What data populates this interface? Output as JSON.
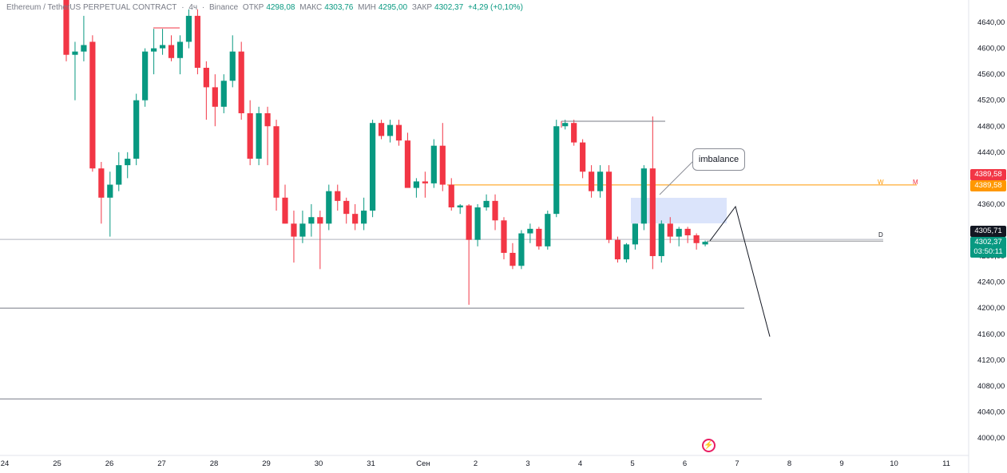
{
  "header": {
    "symbol": "Ethereum / TetherUS PERPETUAL CONTRACT",
    "sep1": "·",
    "interval": "4ч",
    "sep2": "·",
    "exchange": "Binance",
    "open_label": "ОТКР",
    "open_value": "4298,08",
    "high_label": "МАКС",
    "high_value": "4303,76",
    "low_label": "МИН",
    "low_value": "4295,00",
    "close_label": "ЗАКР",
    "close_value": "4302,37",
    "change": "+4,29 (+0,10%)"
  },
  "price_axis": {
    "labels": [
      "4640,00",
      "4600,00",
      "4560,00",
      "4520,00",
      "4480,00",
      "4440,00",
      "4400,00",
      "4360,00",
      "4320,00",
      "4280,00",
      "4240,00",
      "4200,00",
      "4160,00",
      "4120,00",
      "4080,00",
      "4040,00",
      "4000,00"
    ],
    "tags": {
      "red": "4389,58",
      "orange": "4389,58",
      "black": "4305,71",
      "green": "4302,37",
      "timer": "03:50:11"
    }
  },
  "time_axis": {
    "labels": [
      "24",
      "25",
      "26",
      "27",
      "28",
      "29",
      "30",
      "31",
      "Сен",
      "2",
      "3",
      "4",
      "5",
      "6",
      "7",
      "8",
      "9",
      "10",
      "11"
    ]
  },
  "annotations": {
    "imbalance_label": "imbalance",
    "level_w": "W",
    "level_m": "M",
    "level_d": "D"
  },
  "colors": {
    "up": "#089981",
    "down": "#f23645",
    "orange": "#ff9800",
    "level": "#787b86",
    "imbalance": "#dbe4fb"
  },
  "chart_data": {
    "type": "candlestick",
    "ylim": [
      4000,
      4640
    ],
    "candles": [
      {
        "o": 4680,
        "h": 4700,
        "l": 4580,
        "c": 4590
      },
      {
        "o": 4590,
        "h": 4610,
        "l": 4520,
        "c": 4595
      },
      {
        "o": 4595,
        "h": 4650,
        "l": 4580,
        "c": 4605
      },
      {
        "o": 4610,
        "h": 4620,
        "l": 4410,
        "c": 4415
      },
      {
        "o": 4415,
        "h": 4425,
        "l": 4330,
        "c": 4370
      },
      {
        "o": 4370,
        "h": 4410,
        "l": 4310,
        "c": 4390
      },
      {
        "o": 4390,
        "h": 4440,
        "l": 4380,
        "c": 4420
      },
      {
        "o": 4420,
        "h": 4440,
        "l": 4400,
        "c": 4430
      },
      {
        "o": 4430,
        "h": 4530,
        "l": 4420,
        "c": 4520
      },
      {
        "o": 4520,
        "h": 4600,
        "l": 4510,
        "c": 4595
      },
      {
        "o": 4595,
        "h": 4630,
        "l": 4560,
        "c": 4600
      },
      {
        "o": 4600,
        "h": 4630,
        "l": 4590,
        "c": 4605
      },
      {
        "o": 4605,
        "h": 4620,
        "l": 4580,
        "c": 4585
      },
      {
        "o": 4585,
        "h": 4620,
        "l": 4560,
        "c": 4610
      },
      {
        "o": 4610,
        "h": 4660,
        "l": 4600,
        "c": 4650
      },
      {
        "o": 4650,
        "h": 4660,
        "l": 4560,
        "c": 4570
      },
      {
        "o": 4570,
        "h": 4580,
        "l": 4490,
        "c": 4540
      },
      {
        "o": 4540,
        "h": 4560,
        "l": 4480,
        "c": 4510
      },
      {
        "o": 4510,
        "h": 4560,
        "l": 4500,
        "c": 4550
      },
      {
        "o": 4550,
        "h": 4620,
        "l": 4540,
        "c": 4595
      },
      {
        "o": 4595,
        "h": 4610,
        "l": 4490,
        "c": 4500
      },
      {
        "o": 4500,
        "h": 4520,
        "l": 4420,
        "c": 4430
      },
      {
        "o": 4430,
        "h": 4510,
        "l": 4420,
        "c": 4500
      },
      {
        "o": 4500,
        "h": 4510,
        "l": 4420,
        "c": 4480
      },
      {
        "o": 4480,
        "h": 4490,
        "l": 4350,
        "c": 4370
      },
      {
        "o": 4370,
        "h": 4390,
        "l": 4330,
        "c": 4330
      },
      {
        "o": 4330,
        "h": 4350,
        "l": 4270,
        "c": 4310
      },
      {
        "o": 4310,
        "h": 4350,
        "l": 4300,
        "c": 4330
      },
      {
        "o": 4330,
        "h": 4360,
        "l": 4310,
        "c": 4340
      },
      {
        "o": 4340,
        "h": 4350,
        "l": 4260,
        "c": 4330
      },
      {
        "o": 4330,
        "h": 4390,
        "l": 4320,
        "c": 4380
      },
      {
        "o": 4380,
        "h": 4390,
        "l": 4350,
        "c": 4365
      },
      {
        "o": 4365,
        "h": 4370,
        "l": 4330,
        "c": 4345
      },
      {
        "o": 4345,
        "h": 4360,
        "l": 4320,
        "c": 4330
      },
      {
        "o": 4330,
        "h": 4370,
        "l": 4320,
        "c": 4350
      },
      {
        "o": 4350,
        "h": 4490,
        "l": 4340,
        "c": 4485
      },
      {
        "o": 4485,
        "h": 4490,
        "l": 4460,
        "c": 4465
      },
      {
        "o": 4465,
        "h": 4490,
        "l": 4455,
        "c": 4482
      },
      {
        "o": 4482,
        "h": 4490,
        "l": 4450,
        "c": 4458
      },
      {
        "o": 4458,
        "h": 4470,
        "l": 4390,
        "c": 4385
      },
      {
        "o": 4385,
        "h": 4400,
        "l": 4370,
        "c": 4395
      },
      {
        "o": 4395,
        "h": 4410,
        "l": 4370,
        "c": 4392
      },
      {
        "o": 4392,
        "h": 4460,
        "l": 4385,
        "c": 4450
      },
      {
        "o": 4450,
        "h": 4485,
        "l": 4380,
        "c": 4390
      },
      {
        "o": 4390,
        "h": 4400,
        "l": 4350,
        "c": 4355
      },
      {
        "o": 4355,
        "h": 4360,
        "l": 4345,
        "c": 4358
      },
      {
        "o": 4358,
        "h": 4360,
        "l": 4205,
        "c": 4305
      },
      {
        "o": 4305,
        "h": 4360,
        "l": 4295,
        "c": 4355
      },
      {
        "o": 4355,
        "h": 4375,
        "l": 4350,
        "c": 4365
      },
      {
        "o": 4365,
        "h": 4375,
        "l": 4320,
        "c": 4335
      },
      {
        "o": 4335,
        "h": 4340,
        "l": 4275,
        "c": 4285
      },
      {
        "o": 4285,
        "h": 4300,
        "l": 4260,
        "c": 4265
      },
      {
        "o": 4265,
        "h": 4320,
        "l": 4260,
        "c": 4315
      },
      {
        "o": 4315,
        "h": 4330,
        "l": 4300,
        "c": 4322
      },
      {
        "o": 4322,
        "h": 4325,
        "l": 4290,
        "c": 4295
      },
      {
        "o": 4295,
        "h": 4350,
        "l": 4290,
        "c": 4345
      },
      {
        "o": 4345,
        "h": 4490,
        "l": 4340,
        "c": 4480
      },
      {
        "o": 4480,
        "h": 4490,
        "l": 4475,
        "c": 4485
      },
      {
        "o": 4485,
        "h": 4490,
        "l": 4450,
        "c": 4455
      },
      {
        "o": 4455,
        "h": 4460,
        "l": 4400,
        "c": 4410
      },
      {
        "o": 4410,
        "h": 4420,
        "l": 4370,
        "c": 4380
      },
      {
        "o": 4380,
        "h": 4420,
        "l": 4370,
        "c": 4410
      },
      {
        "o": 4410,
        "h": 4420,
        "l": 4300,
        "c": 4305
      },
      {
        "o": 4305,
        "h": 4310,
        "l": 4270,
        "c": 4275
      },
      {
        "o": 4275,
        "h": 4300,
        "l": 4270,
        "c": 4298
      },
      {
        "o": 4298,
        "h": 4330,
        "l": 4290,
        "c": 4330
      },
      {
        "o": 4330,
        "h": 4420,
        "l": 4320,
        "c": 4415
      },
      {
        "o": 4415,
        "h": 4495,
        "l": 4260,
        "c": 4280
      },
      {
        "o": 4280,
        "h": 4335,
        "l": 4270,
        "c": 4330
      },
      {
        "o": 4330,
        "h": 4340,
        "l": 4300,
        "c": 4310
      },
      {
        "o": 4310,
        "h": 4325,
        "l": 4295,
        "c": 4322
      },
      {
        "o": 4322,
        "h": 4325,
        "l": 4300,
        "c": 4312
      },
      {
        "o": 4312,
        "h": 4315,
        "l": 4290,
        "c": 4300
      },
      {
        "o": 4298,
        "h": 4304,
        "l": 4295,
        "c": 4302
      }
    ],
    "levels": [
      {
        "name": "W",
        "price": 4389.58
      },
      {
        "name": "D",
        "price": 4305.71
      },
      {
        "name": "support-1",
        "price": 4200
      },
      {
        "name": "support-2",
        "price": 4060
      }
    ]
  }
}
